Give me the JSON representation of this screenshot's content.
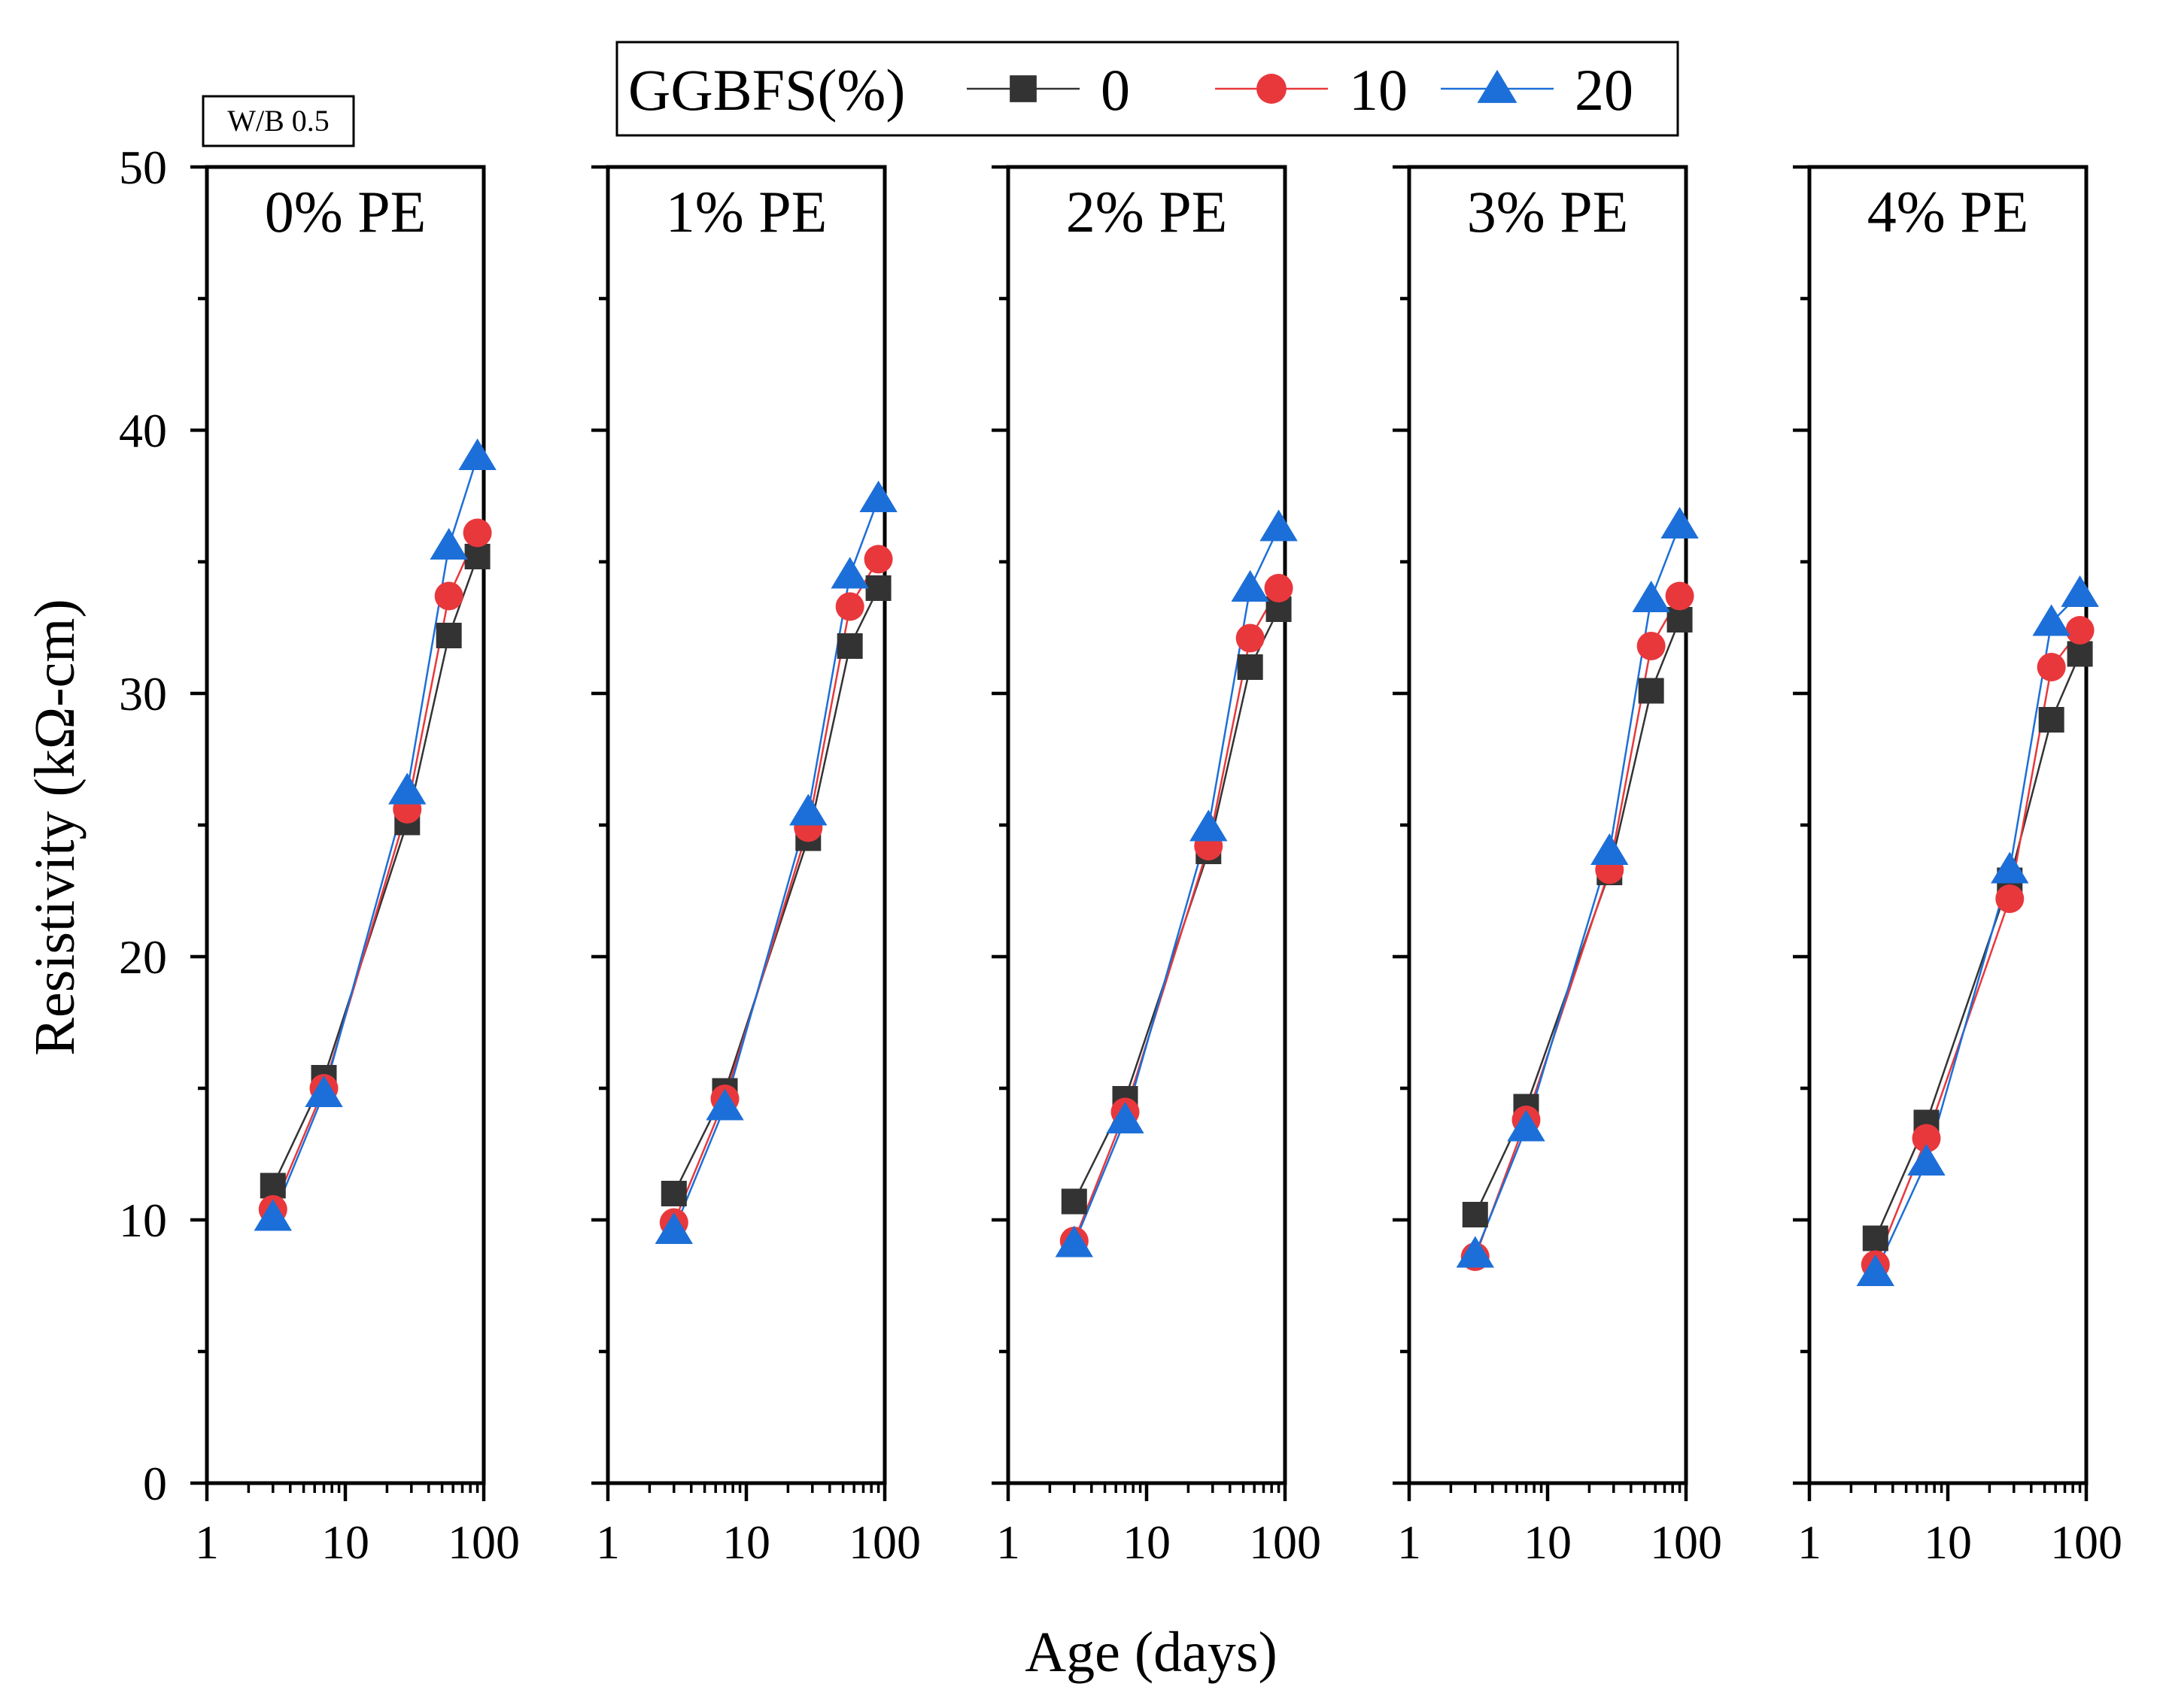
{
  "chart_data": {
    "type": "line",
    "note": "W/B 0.5",
    "xlabel": "Age (days)",
    "ylabel": "Resistivity (kΩ-cm)",
    "xscale": "log",
    "xlim": [
      1,
      100
    ],
    "ylim": [
      0,
      50
    ],
    "x_ticks": [
      "1",
      "10",
      "100"
    ],
    "y_ticks": [
      "0",
      "10",
      "20",
      "30",
      "40",
      "50"
    ],
    "legend": {
      "title": "GGBFS(%)",
      "position": "top-center",
      "entries": [
        "0",
        "10",
        "20"
      ]
    },
    "colors": {
      "0": "#333333",
      "10": "#e8383c",
      "20": "#1c6fd8"
    },
    "x": [
      3,
      7,
      28,
      56,
      90
    ],
    "panels": [
      {
        "title": "0% PE",
        "series": [
          {
            "name": "0",
            "marker": "square",
            "values": [
              11.3,
              15.4,
              25.1,
              32.2,
              35.2
            ]
          },
          {
            "name": "10",
            "marker": "circle",
            "values": [
              10.4,
              15.0,
              25.6,
              33.7,
              36.1
            ]
          },
          {
            "name": "20",
            "marker": "triangle",
            "values": [
              10.1,
              14.8,
              26.3,
              35.6,
              39.0
            ]
          }
        ]
      },
      {
        "title": "1% PE",
        "series": [
          {
            "name": "0",
            "marker": "square",
            "values": [
              11.0,
              14.9,
              24.5,
              31.8,
              34.0
            ]
          },
          {
            "name": "10",
            "marker": "circle",
            "values": [
              9.9,
              14.6,
              24.9,
              33.3,
              35.1
            ]
          },
          {
            "name": "20",
            "marker": "triangle",
            "values": [
              9.6,
              14.3,
              25.5,
              34.5,
              37.4
            ]
          }
        ]
      },
      {
        "title": "2% PE",
        "series": [
          {
            "name": "0",
            "marker": "square",
            "values": [
              10.7,
              14.6,
              24.0,
              31.0,
              33.2
            ]
          },
          {
            "name": "10",
            "marker": "circle",
            "values": [
              9.2,
              14.1,
              24.2,
              32.1,
              34.0
            ]
          },
          {
            "name": "20",
            "marker": "triangle",
            "values": [
              9.1,
              13.8,
              24.9,
              34.0,
              36.3
            ]
          }
        ]
      },
      {
        "title": "3% PE",
        "series": [
          {
            "name": "0",
            "marker": "square",
            "values": [
              10.2,
              14.3,
              23.2,
              30.1,
              32.8
            ]
          },
          {
            "name": "10",
            "marker": "circle",
            "values": [
              8.6,
              13.8,
              23.3,
              31.8,
              33.7
            ]
          },
          {
            "name": "20",
            "marker": "triangle",
            "values": [
              8.7,
              13.5,
              24.0,
              33.6,
              36.4
            ]
          }
        ]
      },
      {
        "title": "4% PE",
        "series": [
          {
            "name": "0",
            "marker": "square",
            "values": [
              9.3,
              13.7,
              22.9,
              29.0,
              31.5
            ]
          },
          {
            "name": "10",
            "marker": "circle",
            "values": [
              8.3,
              13.1,
              22.2,
              31.0,
              32.4
            ]
          },
          {
            "name": "20",
            "marker": "triangle",
            "values": [
              8.0,
              12.2,
              23.3,
              32.7,
              33.8
            ]
          }
        ]
      }
    ]
  }
}
